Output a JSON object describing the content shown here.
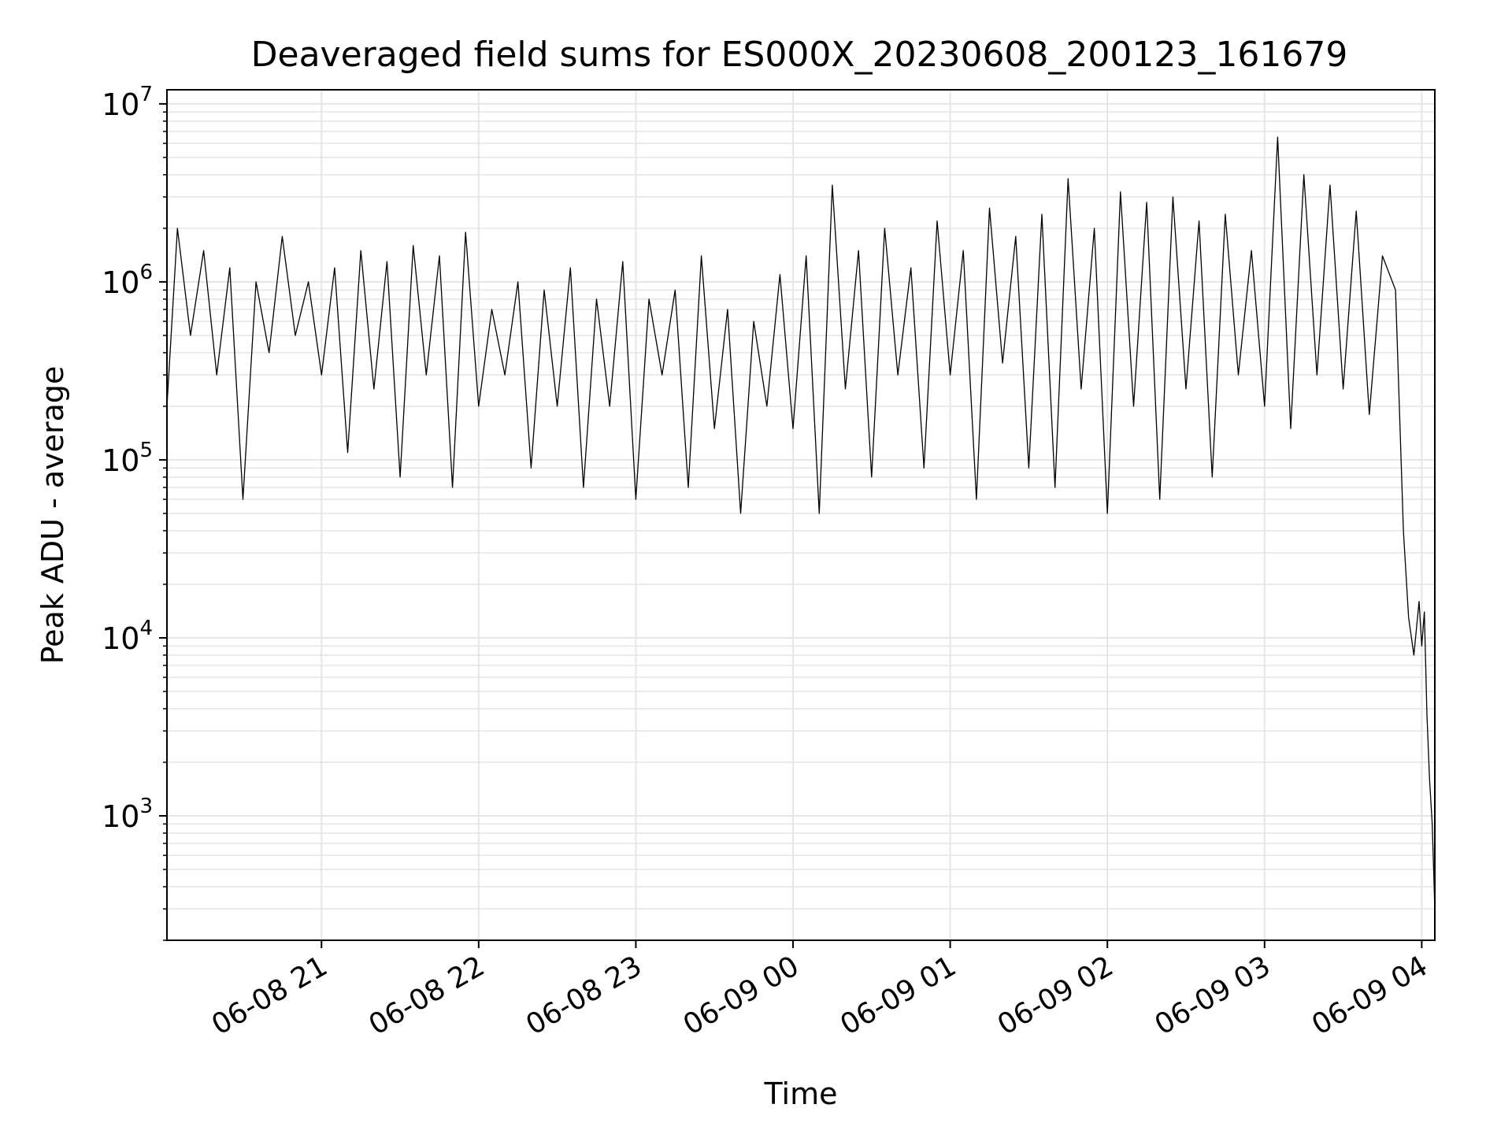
{
  "chart_data": {
    "type": "line",
    "title": "Deaveraged field sums for ES000X_20230608_200123_161679",
    "xlabel": "Time",
    "ylabel": "Peak ADU - average",
    "yscale": "log",
    "ylim": [
      200,
      12000000
    ],
    "xlim": [
      "2023-06-08 20:01",
      "2023-06-09 04:05"
    ],
    "grid": "on (major and minor)",
    "x_ticks": [
      "06-08 21",
      "06-08 22",
      "06-08 23",
      "06-09 00",
      "06-09 01",
      "06-09 02",
      "06-09 03",
      "06-09 04"
    ],
    "y_ticks": [
      "1000",
      "10000",
      "100000",
      "1000000",
      "10000000"
    ],
    "y_tick_labels": [
      {
        "base": "10",
        "exp": "3"
      },
      {
        "base": "10",
        "exp": "4"
      },
      {
        "base": "10",
        "exp": "5"
      },
      {
        "base": "10",
        "exp": "6"
      },
      {
        "base": "10",
        "exp": "7"
      }
    ],
    "series": [
      {
        "color": "#000000",
        "x": [
          "2023-06-08 20:01",
          "2023-06-08 20:05",
          "2023-06-08 20:10",
          "2023-06-08 20:15",
          "2023-06-08 20:20",
          "2023-06-08 20:25",
          "2023-06-08 20:30",
          "2023-06-08 20:35",
          "2023-06-08 20:40",
          "2023-06-08 20:45",
          "2023-06-08 20:50",
          "2023-06-08 20:55",
          "2023-06-08 21:00",
          "2023-06-08 21:05",
          "2023-06-08 21:10",
          "2023-06-08 21:15",
          "2023-06-08 21:20",
          "2023-06-08 21:25",
          "2023-06-08 21:30",
          "2023-06-08 21:35",
          "2023-06-08 21:40",
          "2023-06-08 21:45",
          "2023-06-08 21:50",
          "2023-06-08 21:55",
          "2023-06-08 22:00",
          "2023-06-08 22:05",
          "2023-06-08 22:10",
          "2023-06-08 22:15",
          "2023-06-08 22:20",
          "2023-06-08 22:25",
          "2023-06-08 22:30",
          "2023-06-08 22:35",
          "2023-06-08 22:40",
          "2023-06-08 22:45",
          "2023-06-08 22:50",
          "2023-06-08 22:55",
          "2023-06-08 23:00",
          "2023-06-08 23:05",
          "2023-06-08 23:10",
          "2023-06-08 23:15",
          "2023-06-08 23:20",
          "2023-06-08 23:25",
          "2023-06-08 23:30",
          "2023-06-08 23:35",
          "2023-06-08 23:40",
          "2023-06-08 23:45",
          "2023-06-08 23:50",
          "2023-06-08 23:55",
          "2023-06-09 00:00",
          "2023-06-09 00:05",
          "2023-06-09 00:10",
          "2023-06-09 00:15",
          "2023-06-09 00:20",
          "2023-06-09 00:25",
          "2023-06-09 00:30",
          "2023-06-09 00:35",
          "2023-06-09 00:40",
          "2023-06-09 00:45",
          "2023-06-09 00:50",
          "2023-06-09 00:55",
          "2023-06-09 01:00",
          "2023-06-09 01:05",
          "2023-06-09 01:10",
          "2023-06-09 01:15",
          "2023-06-09 01:20",
          "2023-06-09 01:25",
          "2023-06-09 01:30",
          "2023-06-09 01:35",
          "2023-06-09 01:40",
          "2023-06-09 01:45",
          "2023-06-09 01:50",
          "2023-06-09 01:55",
          "2023-06-09 02:00",
          "2023-06-09 02:05",
          "2023-06-09 02:10",
          "2023-06-09 02:15",
          "2023-06-09 02:20",
          "2023-06-09 02:25",
          "2023-06-09 02:30",
          "2023-06-09 02:35",
          "2023-06-09 02:40",
          "2023-06-09 02:45",
          "2023-06-09 02:50",
          "2023-06-09 02:55",
          "2023-06-09 03:00",
          "2023-06-09 03:05",
          "2023-06-09 03:10",
          "2023-06-09 03:15",
          "2023-06-09 03:20",
          "2023-06-09 03:25",
          "2023-06-09 03:30",
          "2023-06-09 03:35",
          "2023-06-09 03:40",
          "2023-06-09 03:45",
          "2023-06-09 03:50",
          "2023-06-09 03:53",
          "2023-06-09 03:55",
          "2023-06-09 03:57",
          "2023-06-09 03:59",
          "2023-06-09 04:00",
          "2023-06-09 04:01",
          "2023-06-09 04:02",
          "2023-06-09 04:03",
          "2023-06-09 04:04",
          "2023-06-09 04:05"
        ],
        "y": [
          200000,
          2000000,
          500000,
          1500000,
          300000,
          1200000,
          60000,
          1000000,
          400000,
          1800000,
          500000,
          1000000,
          300000,
          1200000,
          110000,
          1500000,
          250000,
          1300000,
          80000,
          1600000,
          300000,
          1400000,
          70000,
          1900000,
          200000,
          700000,
          300000,
          1000000,
          90000,
          900000,
          200000,
          1200000,
          70000,
          800000,
          200000,
          1300000,
          60000,
          800000,
          300000,
          900000,
          70000,
          1400000,
          150000,
          700000,
          50000,
          600000,
          200000,
          1100000,
          150000,
          1400000,
          50000,
          3500000,
          250000,
          1500000,
          80000,
          2000000,
          300000,
          1200000,
          90000,
          2200000,
          300000,
          1500000,
          60000,
          2600000,
          350000,
          1800000,
          90000,
          2400000,
          70000,
          3800000,
          250000,
          2000000,
          50000,
          3200000,
          200000,
          2800000,
          60000,
          3000000,
          250000,
          2200000,
          80000,
          2400000,
          300000,
          1500000,
          200000,
          6500000,
          150000,
          4000000,
          300000,
          3500000,
          250000,
          2500000,
          180000,
          1400000,
          900000,
          40000,
          13000,
          8000,
          16000,
          9000,
          14000,
          3700,
          1600,
          900,
          300
        ]
      }
    ]
  }
}
